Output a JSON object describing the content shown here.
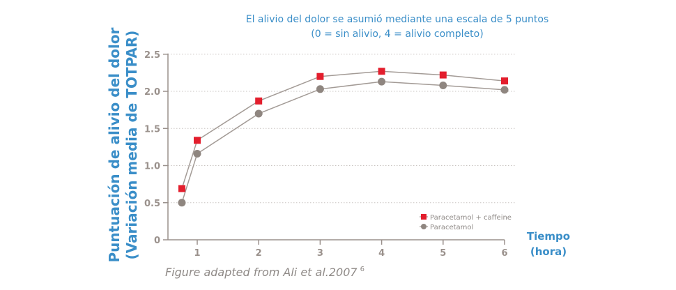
{
  "subtitle": {
    "line1": "El alivio del dolor se asumió mediante una escala de 5 puntos",
    "line2": "(0 = sin alivio, 4 = alivio completo)"
  },
  "axes": {
    "ylabel_line1": "Puntuación de alivio del dolor",
    "ylabel_line2": "(Variación media de TOTPAR)",
    "xlabel_line1": "Tiempo",
    "xlabel_line2": "(hora)",
    "yticks": [
      "0",
      "0.5",
      "1.0",
      "1.5",
      "2.0",
      "2.5"
    ],
    "xticks": [
      "1",
      "2",
      "3",
      "4",
      "5",
      "6"
    ]
  },
  "legend": {
    "items": [
      {
        "label": "Paracetamol + caffeine",
        "color": "#e31e2d",
        "marker": "square"
      },
      {
        "label": "Paracetamol",
        "color": "#8f8680",
        "marker": "circle"
      }
    ]
  },
  "caption": {
    "text": "Figure adapted from Ali et al.2007",
    "ref": "6"
  },
  "colors": {
    "accent_blue": "#3a8ec8",
    "series_red": "#e31e2d",
    "series_gray": "#8f8680",
    "axis": "#9a918c"
  },
  "chart_data": {
    "type": "line",
    "title": "El alivio del dolor se asumió mediante una escala de 5 puntos (0 = sin alivio, 4 = alivio completo)",
    "xlabel": "Tiempo (hora)",
    "ylabel": "Puntuación de alivio del dolor (Variación media de TOTPAR)",
    "x": [
      0.75,
      1,
      2,
      3,
      4,
      5,
      6
    ],
    "series": [
      {
        "name": "Paracetamol + caffeine",
        "values": [
          0.69,
          1.34,
          1.87,
          2.2,
          2.27,
          2.22,
          2.14
        ],
        "color": "#e31e2d",
        "marker": "square"
      },
      {
        "name": "Paracetamol",
        "values": [
          0.5,
          1.16,
          1.7,
          2.03,
          2.13,
          2.08,
          2.02
        ],
        "color": "#8f8680",
        "marker": "circle"
      }
    ],
    "xlim": [
      0.3,
      6
    ],
    "ylim": [
      0,
      2.5
    ],
    "xticks": [
      1,
      2,
      3,
      4,
      5,
      6
    ],
    "yticks": [
      0,
      0.5,
      1.0,
      1.5,
      2.0,
      2.5
    ],
    "grid": "horizontal dotted",
    "legend_position": "lower right inside",
    "annotation": "Figure adapted from Ali et al.2007 6"
  }
}
